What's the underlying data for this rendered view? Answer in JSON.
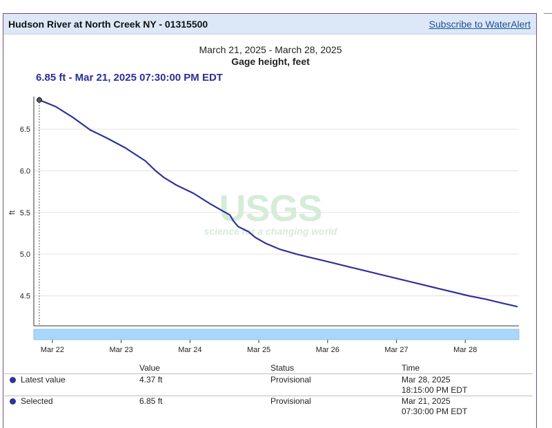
{
  "header": {
    "site_title": "Hudson River at North Creek NY - 01315500",
    "subscribe_label": "Subscribe to WaterAlert"
  },
  "chart_header": {
    "date_range": "March 21, 2025 - March 28, 2025",
    "title": "Gage height, feet",
    "selected_readout": "6.85 ft - Mar 21, 2025 07:30:00 PM EDT"
  },
  "watermark": {
    "text": "USGS",
    "tagline": "science for a changing world"
  },
  "chart_data": {
    "type": "line",
    "title": "Gage height, feet",
    "subtitle": "March 21, 2025 - March 28, 2025",
    "ylabel": "ft",
    "xlabel": "",
    "ylim": [
      4.14,
      6.89
    ],
    "xlim_days": [
      21.73,
      28.78
    ],
    "y_ticks": [
      4.5,
      5.0,
      5.5,
      6.0,
      6.5
    ],
    "y_tick_labels": [
      "4.5",
      "5.0",
      "5.5",
      "6.0",
      "6.5"
    ],
    "x_ticks": [
      22,
      23,
      24,
      25,
      26,
      27,
      28
    ],
    "x_tick_labels": [
      "Mar 22",
      "Mar 23",
      "Mar 24",
      "Mar 25",
      "Mar 26",
      "Mar 27",
      "Mar 28"
    ],
    "grid": true,
    "legend": "none",
    "series": [
      {
        "color": "#2e3397",
        "points": [
          [
            21.81,
            6.85
          ],
          [
            22.05,
            6.77
          ],
          [
            22.3,
            6.64
          ],
          [
            22.55,
            6.49
          ],
          [
            22.8,
            6.39
          ],
          [
            23.05,
            6.28
          ],
          [
            23.35,
            6.12
          ],
          [
            23.5,
            6.0
          ],
          [
            23.62,
            5.92
          ],
          [
            23.8,
            5.83
          ],
          [
            24.05,
            5.73
          ],
          [
            24.3,
            5.6
          ],
          [
            24.45,
            5.53
          ],
          [
            24.58,
            5.47
          ],
          [
            24.63,
            5.4
          ],
          [
            24.7,
            5.33
          ],
          [
            24.85,
            5.27
          ],
          [
            24.95,
            5.2
          ],
          [
            25.1,
            5.13
          ],
          [
            25.3,
            5.06
          ],
          [
            25.55,
            5.0
          ],
          [
            25.8,
            4.95
          ],
          [
            26.05,
            4.9
          ],
          [
            26.3,
            4.85
          ],
          [
            26.55,
            4.8
          ],
          [
            26.8,
            4.75
          ],
          [
            27.05,
            4.7
          ],
          [
            27.3,
            4.65
          ],
          [
            27.55,
            4.6
          ],
          [
            27.8,
            4.55
          ],
          [
            28.05,
            4.5
          ],
          [
            28.3,
            4.46
          ],
          [
            28.55,
            4.41
          ],
          [
            28.76,
            4.37
          ]
        ]
      }
    ],
    "selected_point": {
      "x_day": 21.81,
      "y": 6.85
    }
  },
  "table": {
    "headers": {
      "value": "Value",
      "status": "Status",
      "time": "Time"
    },
    "rows": [
      {
        "label": "Latest value",
        "value": "4.37 ft",
        "status": "Provisional",
        "time_date": "Mar 28, 2025",
        "time_clock": "18:15:00 PM EDT"
      },
      {
        "label": "Selected",
        "value": "6.85 ft",
        "status": "Provisional",
        "time_date": "Mar 21, 2025",
        "time_clock": "07:30:00 PM EDT"
      }
    ]
  },
  "colors": {
    "series": "#2e3397",
    "header_bg": "#dce8f8",
    "brush": "#a8d7fb",
    "link": "#1d4f8f"
  }
}
